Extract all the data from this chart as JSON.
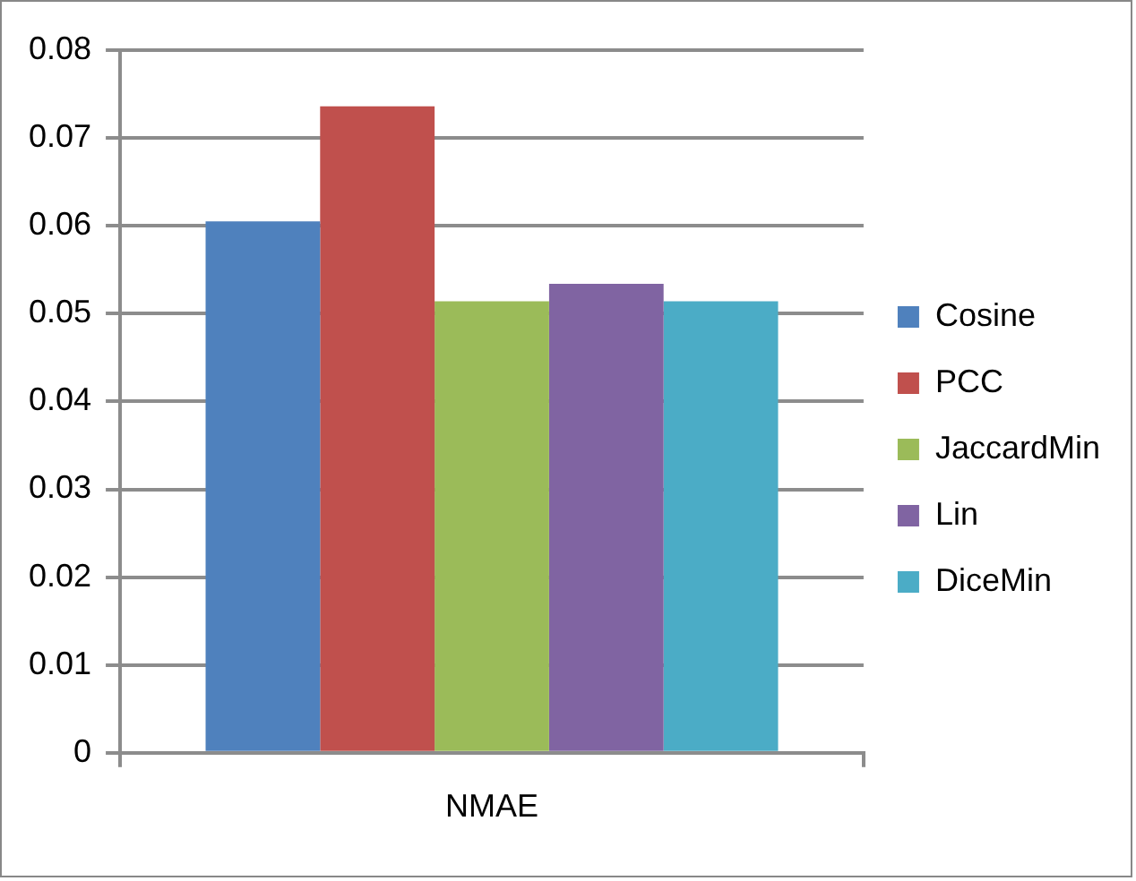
{
  "chart_data": {
    "type": "bar",
    "categories": [
      "NMAE"
    ],
    "series": [
      {
        "name": "Cosine",
        "color": "#4f81bd",
        "values": [
          0.0605
        ]
      },
      {
        "name": "PCC",
        "color": "#c0504d",
        "values": [
          0.0736
        ]
      },
      {
        "name": "JaccardMin",
        "color": "#9bbb59",
        "values": [
          0.0514
        ]
      },
      {
        "name": "Lin",
        "color": "#8064a2",
        "values": [
          0.0534
        ]
      },
      {
        "name": "DiceMin",
        "color": "#4bacc6",
        "values": [
          0.0514
        ]
      }
    ],
    "ylim": [
      0,
      0.08
    ],
    "yticks": [
      0,
      0.01,
      0.02,
      0.03,
      0.04,
      0.05,
      0.06,
      0.07,
      0.08
    ],
    "grid": "y",
    "legend": "right"
  }
}
